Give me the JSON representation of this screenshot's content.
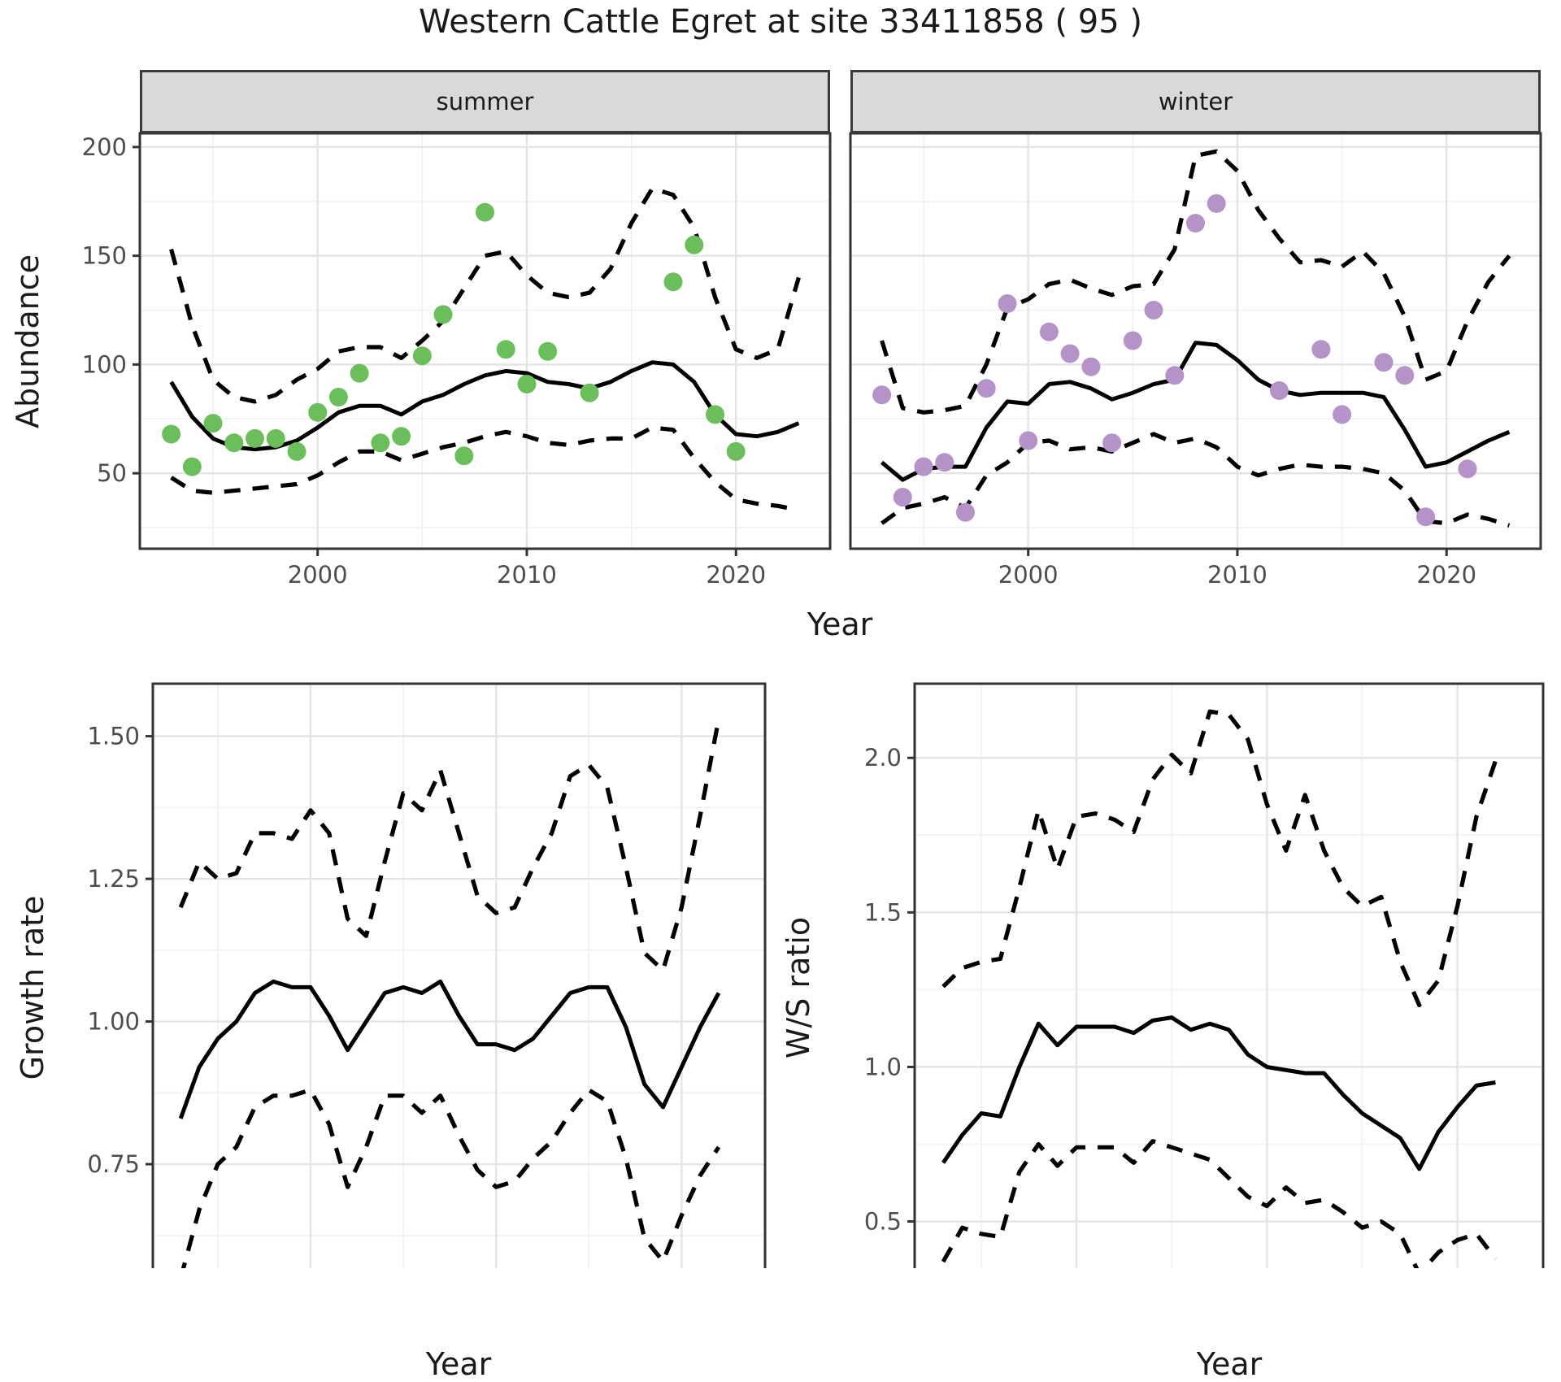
{
  "title": "Western Cattle Egret at site 33411858 ( 95 )",
  "facets": {
    "summer": "summer",
    "winter": "winter"
  },
  "axis_titles": {
    "abundance": "Abundance",
    "year": "Year",
    "growth": "Growth rate",
    "ws": "W/S ratio"
  },
  "colors": {
    "summer_points": "#6abf5a",
    "winter_points": "#b592c8",
    "line": "#000000",
    "grid_major": "#e4e4e4",
    "grid_minor": "#f2f2f2",
    "panel_border": "#333333",
    "tick_text": "#4d4d4d",
    "strip_bg": "#d9d9d9",
    "panel_bg": "#ffffff"
  },
  "chart_data": [
    {
      "key": "summer",
      "type": "line+scatter",
      "facet_label": "summer",
      "xlabel": "Year",
      "ylabel": "Abundance",
      "xlim": [
        1991.5,
        2024.5
      ],
      "ylim": [
        15.3,
        206.3
      ],
      "x_ticks": [
        {
          "v": 2000,
          "label": "2000"
        },
        {
          "v": 2010,
          "label": "2010"
        },
        {
          "v": 2020,
          "label": "2020"
        }
      ],
      "x_minor": [
        1995,
        2005,
        2015
      ],
      "y_ticks": [
        {
          "v": 50,
          "label": "50"
        },
        {
          "v": 100,
          "label": "100"
        },
        {
          "v": 150,
          "label": "150"
        },
        {
          "v": 200,
          "label": "200"
        }
      ],
      "y_minor": [
        25,
        75,
        125,
        175
      ],
      "show_y_labels": true,
      "years": [
        1993,
        1994,
        1995,
        1996,
        1997,
        1998,
        1999,
        2000,
        2001,
        2002,
        2003,
        2004,
        2005,
        2006,
        2007,
        2008,
        2009,
        2010,
        2011,
        2012,
        2013,
        2014,
        2015,
        2016,
        2017,
        2018,
        2019,
        2020,
        2021,
        2022,
        2023
      ],
      "median": [
        92,
        76,
        66,
        62,
        61,
        62,
        65,
        71,
        78,
        81,
        81,
        77,
        83,
        86,
        91,
        95,
        97,
        96,
        92,
        91,
        89,
        92,
        97,
        101,
        100,
        92,
        77,
        68,
        67,
        69,
        73
      ],
      "upper": [
        153,
        118,
        93,
        85,
        83,
        86,
        93,
        98,
        106,
        108,
        108,
        103,
        111,
        120,
        135,
        150,
        152,
        141,
        133,
        131,
        133,
        144,
        165,
        181,
        178,
        163,
        131,
        107,
        103,
        107,
        140
      ],
      "lower": [
        48,
        42,
        41,
        42,
        43,
        44,
        45,
        49,
        55,
        60,
        60,
        56,
        59,
        62,
        64,
        67,
        69,
        67,
        64,
        63,
        65,
        66,
        66,
        71,
        70,
        57,
        46,
        38,
        36,
        35,
        33
      ],
      "points": {
        "years": [
          1993,
          1994,
          1995,
          1996,
          1997,
          1998,
          1999,
          2000,
          2001,
          2002,
          2003,
          2004,
          2005,
          2006,
          2007,
          2008,
          2009,
          2010,
          2011,
          2013,
          2017,
          2018,
          2019,
          2020
        ],
        "values": [
          68,
          53,
          73,
          64,
          66,
          66,
          60,
          78,
          85,
          96,
          64,
          67,
          104,
          123,
          58,
          170,
          107,
          91,
          106,
          87,
          138,
          155,
          77,
          60
        ],
        "color_key": "summer_points"
      }
    },
    {
      "key": "winter",
      "type": "line+scatter",
      "facet_label": "winter",
      "xlabel": "Year",
      "ylabel": "Abundance",
      "xlim": [
        1991.5,
        2024.5
      ],
      "ylim": [
        15.3,
        206.3
      ],
      "x_ticks": [
        {
          "v": 2000,
          "label": "2000"
        },
        {
          "v": 2010,
          "label": "2010"
        },
        {
          "v": 2020,
          "label": "2020"
        }
      ],
      "x_minor": [
        1995,
        2005,
        2015
      ],
      "y_ticks": [
        {
          "v": 50,
          "label": "50"
        },
        {
          "v": 100,
          "label": "100"
        },
        {
          "v": 150,
          "label": "150"
        },
        {
          "v": 200,
          "label": "200"
        }
      ],
      "y_minor": [
        25,
        75,
        125,
        175
      ],
      "show_y_labels": false,
      "years": [
        1993,
        1994,
        1995,
        1996,
        1997,
        1998,
        1999,
        2000,
        2001,
        2002,
        2003,
        2004,
        2005,
        2006,
        2007,
        2008,
        2009,
        2010,
        2011,
        2012,
        2013,
        2014,
        2015,
        2016,
        2017,
        2018,
        2019,
        2020,
        2021,
        2022,
        2023
      ],
      "median": [
        55,
        47,
        52,
        53,
        53,
        71,
        83,
        82,
        91,
        92,
        89,
        84,
        87,
        91,
        93,
        110,
        109,
        102,
        93,
        88,
        86,
        87,
        87,
        87,
        85,
        70,
        53,
        55,
        60,
        65,
        69
      ],
      "upper": [
        111,
        80,
        78,
        79,
        81,
        100,
        126,
        130,
        137,
        139,
        135,
        132,
        136,
        137,
        153,
        196,
        198,
        189,
        171,
        158,
        147,
        148,
        145,
        152,
        142,
        122,
        93,
        97,
        120,
        138,
        150
      ],
      "lower": [
        27,
        34,
        36,
        39,
        34,
        49,
        55,
        64,
        65,
        61,
        62,
        60,
        64,
        68,
        64,
        66,
        62,
        53,
        49,
        52,
        54,
        53,
        53,
        52,
        50,
        42,
        28,
        27,
        31,
        29,
        26
      ],
      "points": {
        "years": [
          1993,
          1994,
          1995,
          1996,
          1997,
          1998,
          1999,
          2000,
          2001,
          2002,
          2003,
          2004,
          2005,
          2006,
          2007,
          2008,
          2009,
          2012,
          2014,
          2015,
          2017,
          2018,
          2019,
          2021
        ],
        "values": [
          86,
          39,
          53,
          55,
          32,
          89,
          128,
          65,
          115,
          105,
          99,
          64,
          111,
          125,
          95,
          165,
          174,
          88,
          107,
          77,
          101,
          95,
          30,
          52
        ],
        "color_key": "winter_points"
      }
    },
    {
      "key": "growth",
      "type": "line",
      "facet_label": "",
      "xlabel": "Year",
      "ylabel": "Growth rate",
      "xlim": [
        1991.5,
        2024.5
      ],
      "ylim": [
        0.525,
        1.592
      ],
      "x_ticks": [
        {
          "v": 2000,
          "label": "2000"
        },
        {
          "v": 2010,
          "label": "2010"
        },
        {
          "v": 2020,
          "label": "2020"
        }
      ],
      "x_minor": [
        1995,
        2005,
        2015
      ],
      "y_ticks": [
        {
          "v": 0.75,
          "label": "0.75"
        },
        {
          "v": 1.0,
          "label": "1.00"
        },
        {
          "v": 1.25,
          "label": "1.25"
        },
        {
          "v": 1.5,
          "label": "1.50"
        }
      ],
      "y_minor": [
        0.625,
        0.875,
        1.125,
        1.375
      ],
      "show_y_labels": true,
      "years": [
        1993,
        1994,
        1995,
        1996,
        1997,
        1998,
        1999,
        2000,
        2001,
        2002,
        2003,
        2004,
        2005,
        2006,
        2007,
        2008,
        2009,
        2010,
        2011,
        2012,
        2013,
        2014,
        2015,
        2016,
        2017,
        2018,
        2019,
        2020,
        2021,
        2022
      ],
      "median": [
        0.83,
        0.92,
        0.97,
        1.0,
        1.05,
        1.07,
        1.06,
        1.06,
        1.01,
        0.95,
        1.0,
        1.05,
        1.06,
        1.05,
        1.07,
        1.01,
        0.96,
        0.96,
        0.95,
        0.97,
        1.01,
        1.05,
        1.06,
        1.06,
        0.99,
        0.89,
        0.85,
        0.92,
        0.99,
        1.05
      ],
      "upper": [
        1.2,
        1.28,
        1.25,
        1.26,
        1.33,
        1.33,
        1.32,
        1.37,
        1.33,
        1.18,
        1.15,
        1.28,
        1.4,
        1.37,
        1.44,
        1.33,
        1.22,
        1.19,
        1.2,
        1.27,
        1.33,
        1.43,
        1.45,
        1.41,
        1.27,
        1.12,
        1.09,
        1.2,
        1.36,
        1.53
      ],
      "lower": [
        0.55,
        0.67,
        0.75,
        0.78,
        0.85,
        0.87,
        0.87,
        0.88,
        0.82,
        0.71,
        0.78,
        0.87,
        0.87,
        0.84,
        0.87,
        0.8,
        0.74,
        0.71,
        0.72,
        0.76,
        0.79,
        0.84,
        0.88,
        0.86,
        0.76,
        0.62,
        0.58,
        0.66,
        0.73,
        0.78
      ]
    },
    {
      "key": "ws",
      "type": "line",
      "facet_label": "",
      "xlabel": "Year",
      "ylabel": "W/S ratio",
      "xlim": [
        1991.5,
        2024.5
      ],
      "ylim": [
        0.27,
        2.24
      ],
      "x_ticks": [
        {
          "v": 2000,
          "label": "2000"
        },
        {
          "v": 2010,
          "label": "2010"
        },
        {
          "v": 2020,
          "label": "2020"
        }
      ],
      "x_minor": [
        1995,
        2005,
        2015
      ],
      "y_ticks": [
        {
          "v": 0.5,
          "label": "0.5"
        },
        {
          "v": 1.0,
          "label": "1.0"
        },
        {
          "v": 1.5,
          "label": "1.5"
        },
        {
          "v": 2.0,
          "label": "2.0"
        }
      ],
      "y_minor": [
        0.75,
        1.25,
        1.75
      ],
      "show_y_labels": true,
      "years": [
        1993,
        1994,
        1995,
        1996,
        1997,
        1998,
        1999,
        2000,
        2001,
        2002,
        2003,
        2004,
        2005,
        2006,
        2007,
        2008,
        2009,
        2010,
        2011,
        2012,
        2013,
        2014,
        2015,
        2016,
        2017,
        2018,
        2019,
        2020,
        2021,
        2022
      ],
      "median": [
        0.69,
        0.78,
        0.85,
        0.84,
        1.0,
        1.14,
        1.07,
        1.13,
        1.13,
        1.13,
        1.11,
        1.15,
        1.16,
        1.12,
        1.14,
        1.12,
        1.04,
        1.0,
        0.99,
        0.98,
        0.98,
        0.91,
        0.85,
        0.81,
        0.77,
        0.67,
        0.79,
        0.87,
        0.94,
        0.95
      ],
      "upper": [
        1.26,
        1.32,
        1.34,
        1.35,
        1.58,
        1.83,
        1.64,
        1.81,
        1.82,
        1.8,
        1.76,
        1.93,
        2.01,
        1.95,
        2.15,
        2.14,
        2.06,
        1.85,
        1.7,
        1.88,
        1.7,
        1.58,
        1.52,
        1.55,
        1.34,
        1.2,
        1.28,
        1.52,
        1.81,
        1.99
      ],
      "lower": [
        0.37,
        0.48,
        0.46,
        0.45,
        0.66,
        0.75,
        0.68,
        0.74,
        0.74,
        0.74,
        0.69,
        0.76,
        0.74,
        0.72,
        0.7,
        0.64,
        0.58,
        0.55,
        0.61,
        0.56,
        0.57,
        0.53,
        0.48,
        0.5,
        0.46,
        0.33,
        0.4,
        0.44,
        0.46,
        0.38
      ]
    }
  ]
}
